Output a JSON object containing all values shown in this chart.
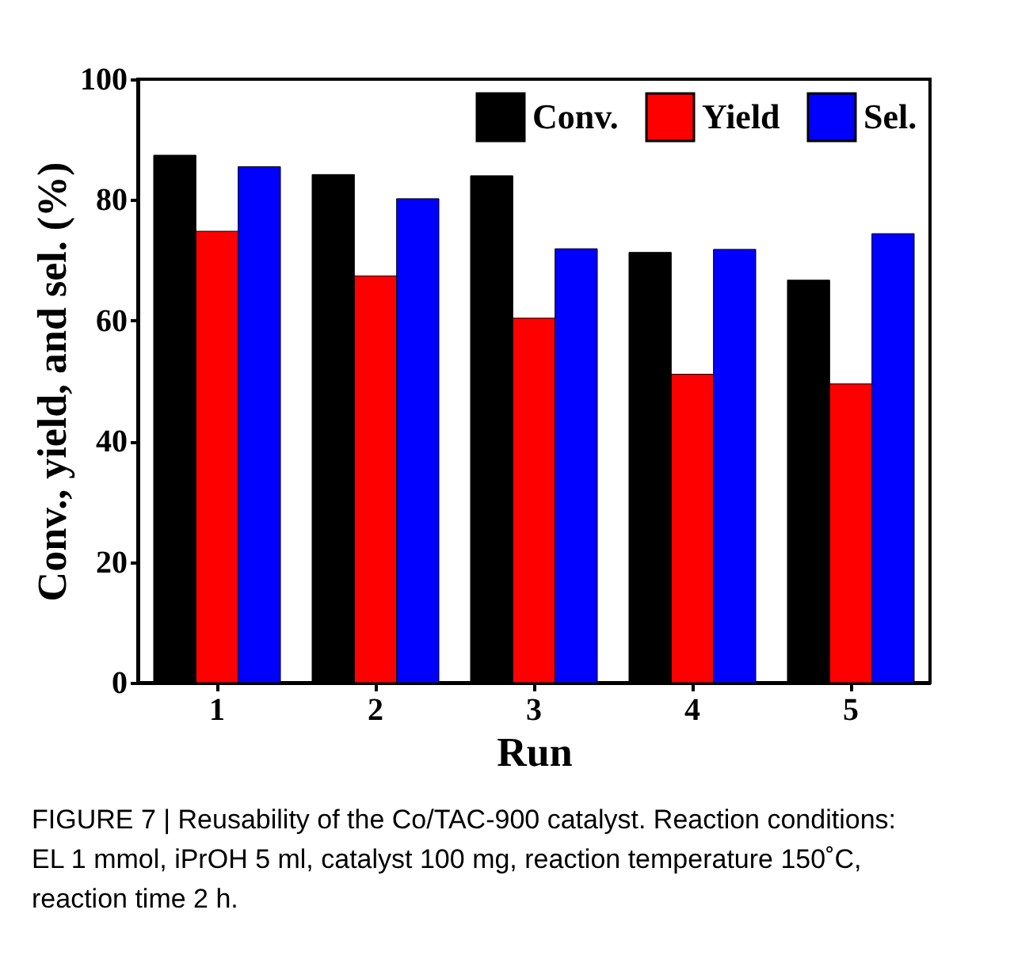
{
  "chart_data": {
    "type": "bar",
    "xlabel": "Run",
    "ylabel": "Conv., yield, and sel. (%)",
    "categories": [
      "1",
      "2",
      "3",
      "4",
      "5"
    ],
    "series": [
      {
        "name": "Conv.",
        "color": "#000000",
        "values": [
          87.4,
          84.2,
          84.0,
          71.3,
          66.7
        ]
      },
      {
        "name": "Yield",
        "color": "#ff0000",
        "values": [
          74.8,
          67.4,
          60.4,
          51.1,
          49.5
        ]
      },
      {
        "name": "Sel.",
        "color": "#0000ff",
        "values": [
          85.5,
          80.2,
          71.9,
          71.8,
          74.4
        ]
      }
    ],
    "ylim": [
      0,
      100
    ],
    "yticks": [
      0,
      20,
      40,
      60,
      80,
      100
    ],
    "grid": false,
    "legend": "top right",
    "annotations": [
      "FIGURE 7 | Reusability of the Co/TAC-900 catalyst. Reaction conditions: EL 1 mmol, iPrOH 5 ml, catalyst 100 mg, reaction temperature 150˚C, reaction time 2 h."
    ]
  }
}
